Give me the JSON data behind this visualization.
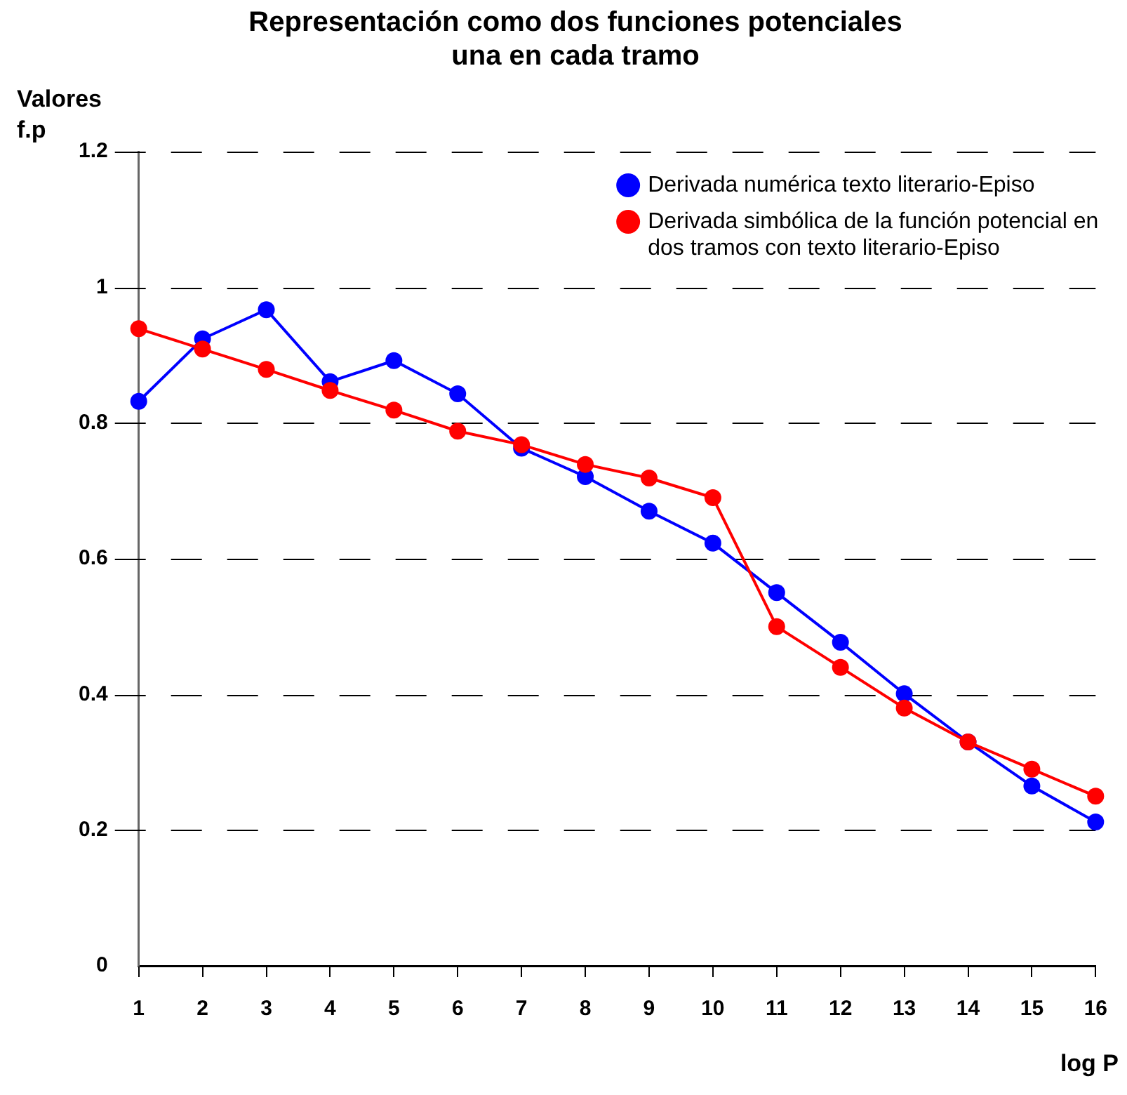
{
  "chart_data": {
    "type": "line",
    "title": "Representación como dos funciones potenciales una en cada tramo",
    "xlabel": "log P",
    "ylabel": "Valores f.p",
    "x": [
      1,
      2,
      3,
      4,
      5,
      6,
      7,
      8,
      9,
      10,
      11,
      12,
      13,
      14,
      15,
      16
    ],
    "series": [
      {
        "name": "Derivada numérica texto literario-Episo",
        "color": "#0000ff",
        "values": [
          0.832,
          0.924,
          0.967,
          0.861,
          0.892,
          0.843,
          0.763,
          0.721,
          0.67,
          0.623,
          0.55,
          0.477,
          0.401,
          0.33,
          0.265,
          0.212
        ]
      },
      {
        "name": "Derivada simbólica de la función potencial en dos tramos con texto literario-Episo",
        "color": "#ff0000",
        "values": [
          0.939,
          0.909,
          0.879,
          0.848,
          0.819,
          0.788,
          0.768,
          0.739,
          0.719,
          0.69,
          0.5,
          0.44,
          0.38,
          0.33,
          0.29,
          0.25
        ]
      }
    ],
    "xlim": [
      1,
      16
    ],
    "xticks": [
      1,
      2,
      3,
      4,
      5,
      6,
      7,
      8,
      9,
      10,
      11,
      12,
      13,
      14,
      15,
      16
    ],
    "ylim": [
      0,
      1.2
    ],
    "yticks": [
      0,
      0.2,
      0.4,
      0.6,
      0.8,
      1,
      1.2
    ],
    "grid": "y",
    "legend": "top right",
    "marker": "circle",
    "line_style": "solid"
  }
}
